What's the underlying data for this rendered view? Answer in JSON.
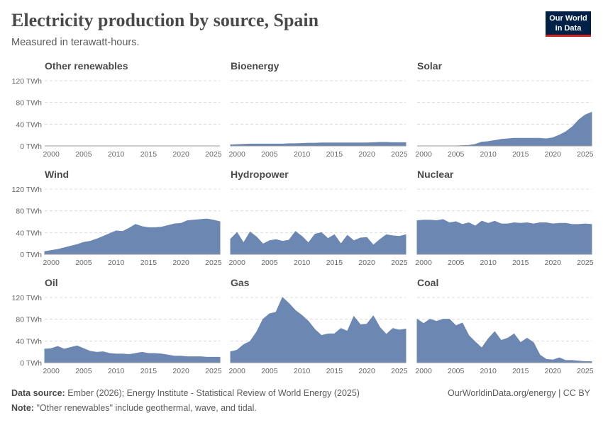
{
  "title": "Electricity production by source, Spain",
  "subtitle": "Measured in terawatt-hours.",
  "logo": {
    "line1": "Our World",
    "line2": "in Data"
  },
  "footer": {
    "source_label": "Data source:",
    "source_text": "Ember (2026); Energy Institute - Statistical Review of World Energy (2025)",
    "note_label": "Note:",
    "note_text": "\"Other renewables\" include geothermal, wave, and tidal.",
    "credit": "OurWorldinData.org/energy | CC BY"
  },
  "colors": {
    "area": "#6c87b2",
    "grid": "#dcdcdc",
    "axis_text": "#666666",
    "panel_title": "#4a4a4a"
  },
  "chart_data": {
    "type": "area",
    "layout": "small-multiples 3x3",
    "ylim": [
      0,
      120
    ],
    "yticks": [
      0,
      40,
      80,
      120
    ],
    "ytick_labels": [
      "0 TWh",
      "40 TWh",
      "80 TWh",
      "120 TWh"
    ],
    "xlim": [
      1999,
      2026
    ],
    "xticks": [
      2000,
      2005,
      2010,
      2015,
      2020,
      2025
    ],
    "xtick_labels": [
      "2000",
      "2005",
      "2010",
      "2015",
      "2020",
      "2025"
    ],
    "x": [
      1999,
      2000,
      2001,
      2002,
      2003,
      2004,
      2005,
      2006,
      2007,
      2008,
      2009,
      2010,
      2011,
      2012,
      2013,
      2014,
      2015,
      2016,
      2017,
      2018,
      2019,
      2020,
      2021,
      2022,
      2023,
      2024,
      2025,
      2026
    ],
    "series": [
      {
        "name": "Other renewables",
        "values": [
          0,
          0,
          0,
          0,
          0,
          0,
          0,
          0,
          0,
          0,
          0,
          0,
          0,
          0,
          0,
          0,
          0,
          0,
          0,
          0,
          0,
          0,
          0,
          0,
          0,
          0,
          0,
          0
        ]
      },
      {
        "name": "Bioenergy",
        "values": [
          2,
          2.5,
          3,
          3.5,
          3.5,
          3.5,
          3.5,
          3.5,
          3.5,
          4,
          4,
          4.5,
          5,
          5,
          5.5,
          5.5,
          5.5,
          5.5,
          5.5,
          5.5,
          5.5,
          5.5,
          6,
          6.5,
          6.5,
          6,
          6,
          6
        ]
      },
      {
        "name": "Solar",
        "values": [
          0,
          0,
          0,
          0,
          0,
          0,
          0,
          0.5,
          1,
          3,
          7,
          8,
          10,
          12,
          13,
          14,
          14,
          14,
          14,
          14,
          13,
          15,
          20,
          26,
          35,
          48,
          57,
          62
        ]
      },
      {
        "name": "Wind",
        "values": [
          5,
          7,
          9,
          12,
          15,
          18,
          22,
          24,
          28,
          33,
          38,
          43,
          42,
          48,
          55,
          51,
          49,
          49,
          50,
          53,
          56,
          57,
          62,
          63,
          64,
          65,
          63,
          60
        ]
      },
      {
        "name": "Hydropower",
        "values": [
          28,
          40,
          21,
          41,
          32,
          19,
          25,
          27,
          24,
          26,
          42,
          33,
          21,
          37,
          40,
          29,
          36,
          19,
          35,
          25,
          30,
          31,
          17,
          27,
          36,
          34,
          33,
          36
        ]
      },
      {
        "name": "Nuclear",
        "values": [
          62,
          63,
          63,
          62,
          64,
          58,
          60,
          55,
          58,
          52,
          61,
          57,
          61,
          56,
          56,
          58,
          57,
          58,
          56,
          58,
          58,
          56,
          57,
          57,
          55,
          55,
          56,
          55
        ]
      },
      {
        "name": "Oil",
        "values": [
          25,
          26,
          30,
          25,
          28,
          31,
          26,
          21,
          19,
          20,
          17,
          16,
          16,
          15,
          17,
          19,
          17,
          17,
          16,
          14,
          12,
          12,
          11,
          11,
          11,
          10,
          10,
          10
        ]
      },
      {
        "name": "Gas",
        "values": [
          20,
          23,
          33,
          39,
          56,
          80,
          90,
          93,
          120,
          109,
          96,
          87,
          76,
          61,
          50,
          53,
          53,
          63,
          58,
          85,
          70,
          71,
          86,
          65,
          52,
          63,
          60,
          62
        ]
      },
      {
        "name": "Coal",
        "values": [
          80,
          72,
          80,
          76,
          80,
          80,
          68,
          73,
          50,
          38,
          27,
          44,
          57,
          41,
          45,
          53,
          37,
          45,
          37,
          14,
          6,
          5,
          9,
          4,
          4,
          3,
          2,
          2
        ]
      }
    ]
  }
}
